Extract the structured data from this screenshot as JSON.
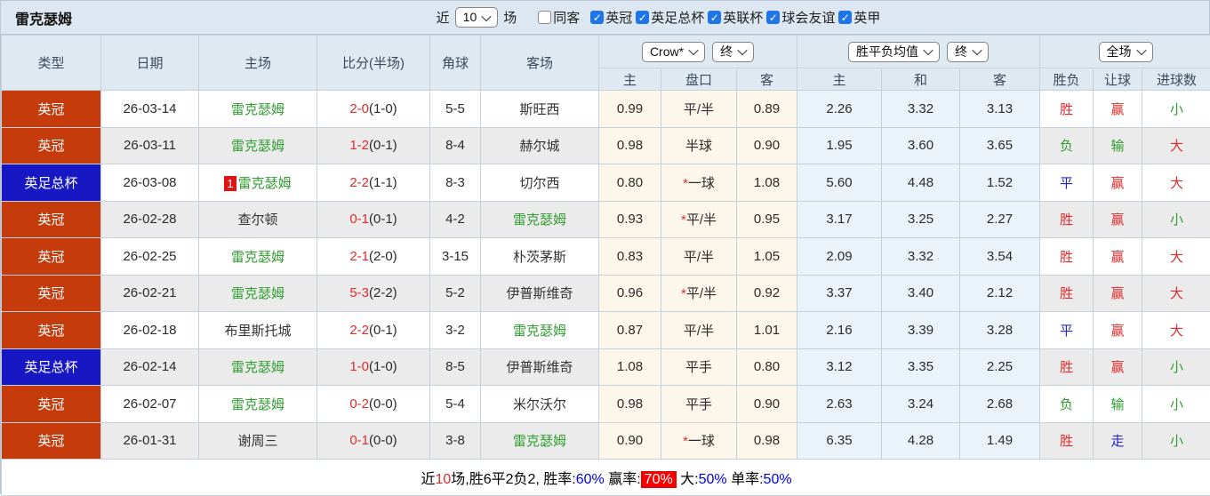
{
  "title": "雷克瑟姆",
  "toolbar": {
    "recent_label": "近",
    "recent_select": "10",
    "matches_label": "场",
    "filters": [
      {
        "label": "同客",
        "checked": false
      },
      {
        "label": "英冠",
        "checked": true
      },
      {
        "label": "英足总杯",
        "checked": true
      },
      {
        "label": "英联杯",
        "checked": true
      },
      {
        "label": "球会友谊",
        "checked": true
      },
      {
        "label": "英甲",
        "checked": true
      }
    ]
  },
  "header": {
    "type": "类型",
    "date": "日期",
    "home": "主场",
    "score": "比分(半场)",
    "corners": "角球",
    "away": "客场",
    "odds_provider_select": "Crow*",
    "odds_state_select": "终",
    "odds_home": "主",
    "odds_handicap": "盘口",
    "odds_away": "客",
    "avg_select": "胜平负均值",
    "avg_state_select": "终",
    "avg_home": "主",
    "avg_draw": "和",
    "avg_away": "客",
    "scope_select": "全场",
    "result": "胜负",
    "handicap_result": "让球",
    "goals": "进球数"
  },
  "colors": {
    "league": {
      "英冠": "#c53b0c",
      "英足总杯": "#1717c3"
    },
    "value": {
      "胜": "#e02c2c",
      "负": "#2f9e2f",
      "平": "#2222cc",
      "赢": "#e02c2c",
      "输": "#2f9e2f",
      "走": "#2222cc",
      "大": "#e02c2c",
      "小": "#2f9e2f"
    },
    "team_highlight": "#2f9e2f",
    "score": "#e02c2c"
  },
  "rows": [
    {
      "league": "英冠",
      "date": "26-03-14",
      "home": "雷克瑟姆",
      "home_is_team": true,
      "home_badge": "",
      "score": "2-0",
      "half": "(1-0)",
      "corners": "5-5",
      "away": "斯旺西",
      "away_is_team": false,
      "crow_home": "0.99",
      "handicap": "平/半",
      "handicap_star": false,
      "crow_away": "0.89",
      "avg_home": "2.26",
      "avg_draw": "3.32",
      "avg_away": "3.13",
      "result": "胜",
      "let_result": "赢",
      "goal_result": "小"
    },
    {
      "league": "英冠",
      "date": "26-03-11",
      "home": "雷克瑟姆",
      "home_is_team": true,
      "home_badge": "",
      "score": "1-2",
      "half": "(0-1)",
      "corners": "8-4",
      "away": "赫尔城",
      "away_is_team": false,
      "crow_home": "0.98",
      "handicap": "半球",
      "handicap_star": false,
      "crow_away": "0.90",
      "avg_home": "1.95",
      "avg_draw": "3.60",
      "avg_away": "3.65",
      "result": "负",
      "let_result": "输",
      "goal_result": "大"
    },
    {
      "league": "英足总杯",
      "date": "26-03-08",
      "home": "雷克瑟姆",
      "home_is_team": true,
      "home_badge": "1",
      "score": "2-2",
      "half": "(1-1)",
      "corners": "8-3",
      "away": "切尔西",
      "away_is_team": false,
      "crow_home": "0.80",
      "handicap": "一球",
      "handicap_star": true,
      "crow_away": "1.08",
      "avg_home": "5.60",
      "avg_draw": "4.48",
      "avg_away": "1.52",
      "result": "平",
      "let_result": "赢",
      "goal_result": "大"
    },
    {
      "league": "英冠",
      "date": "26-02-28",
      "home": "查尔顿",
      "home_is_team": false,
      "home_badge": "",
      "score": "0-1",
      "half": "(0-1)",
      "corners": "4-2",
      "away": "雷克瑟姆",
      "away_is_team": true,
      "crow_home": "0.93",
      "handicap": "平/半",
      "handicap_star": true,
      "crow_away": "0.95",
      "avg_home": "3.17",
      "avg_draw": "3.25",
      "avg_away": "2.27",
      "result": "胜",
      "let_result": "赢",
      "goal_result": "小"
    },
    {
      "league": "英冠",
      "date": "26-02-25",
      "home": "雷克瑟姆",
      "home_is_team": true,
      "home_badge": "",
      "score": "2-1",
      "half": "(2-0)",
      "corners": "3-15",
      "away": "朴茨茅斯",
      "away_is_team": false,
      "crow_home": "0.83",
      "handicap": "平/半",
      "handicap_star": false,
      "crow_away": "1.05",
      "avg_home": "2.09",
      "avg_draw": "3.32",
      "avg_away": "3.54",
      "result": "胜",
      "let_result": "赢",
      "goal_result": "大"
    },
    {
      "league": "英冠",
      "date": "26-02-21",
      "home": "雷克瑟姆",
      "home_is_team": true,
      "home_badge": "",
      "score": "5-3",
      "half": "(2-2)",
      "corners": "5-2",
      "away": "伊普斯维奇",
      "away_is_team": false,
      "crow_home": "0.96",
      "handicap": "平/半",
      "handicap_star": true,
      "crow_away": "0.92",
      "avg_home": "3.37",
      "avg_draw": "3.40",
      "avg_away": "2.12",
      "result": "胜",
      "let_result": "赢",
      "goal_result": "大"
    },
    {
      "league": "英冠",
      "date": "26-02-18",
      "home": "布里斯托城",
      "home_is_team": false,
      "home_badge": "",
      "score": "2-2",
      "half": "(0-1)",
      "corners": "3-2",
      "away": "雷克瑟姆",
      "away_is_team": true,
      "crow_home": "0.87",
      "handicap": "平/半",
      "handicap_star": false,
      "crow_away": "1.01",
      "avg_home": "2.16",
      "avg_draw": "3.39",
      "avg_away": "3.28",
      "result": "平",
      "let_result": "赢",
      "goal_result": "大"
    },
    {
      "league": "英足总杯",
      "date": "26-02-14",
      "home": "雷克瑟姆",
      "home_is_team": true,
      "home_badge": "",
      "score": "1-0",
      "half": "(1-0)",
      "corners": "8-5",
      "away": "伊普斯维奇",
      "away_is_team": false,
      "crow_home": "1.08",
      "handicap": "平手",
      "handicap_star": false,
      "crow_away": "0.80",
      "avg_home": "3.12",
      "avg_draw": "3.35",
      "avg_away": "2.25",
      "result": "胜",
      "let_result": "赢",
      "goal_result": "小"
    },
    {
      "league": "英冠",
      "date": "26-02-07",
      "home": "雷克瑟姆",
      "home_is_team": true,
      "home_badge": "",
      "score": "0-2",
      "half": "(0-0)",
      "corners": "5-4",
      "away": "米尔沃尔",
      "away_is_team": false,
      "crow_home": "0.98",
      "handicap": "平手",
      "handicap_star": false,
      "crow_away": "0.90",
      "avg_home": "2.63",
      "avg_draw": "3.24",
      "avg_away": "2.68",
      "result": "负",
      "let_result": "输",
      "goal_result": "小"
    },
    {
      "league": "英冠",
      "date": "26-01-31",
      "home": "谢周三",
      "home_is_team": false,
      "home_badge": "",
      "score": "0-1",
      "half": "(0-0)",
      "corners": "3-8",
      "away": "雷克瑟姆",
      "away_is_team": true,
      "crow_home": "0.90",
      "handicap": "一球",
      "handicap_star": true,
      "crow_away": "0.98",
      "avg_home": "6.35",
      "avg_draw": "4.28",
      "avg_away": "1.49",
      "result": "胜",
      "let_result": "走",
      "goal_result": "小"
    }
  ],
  "footer": {
    "segments": [
      {
        "text": "近",
        "style": "plain"
      },
      {
        "text": "10",
        "style": "red"
      },
      {
        "text": "场,胜6平2负2, 胜率:",
        "style": "plain"
      },
      {
        "text": "60%",
        "style": "blue"
      },
      {
        "text": " 赢率:",
        "style": "plain"
      },
      {
        "text": "70%",
        "style": "redbadge"
      },
      {
        "text": " 大:",
        "style": "plain"
      },
      {
        "text": "50%",
        "style": "blue"
      },
      {
        "text": " 单率:",
        "style": "plain"
      },
      {
        "text": "50%",
        "style": "blue"
      }
    ]
  }
}
